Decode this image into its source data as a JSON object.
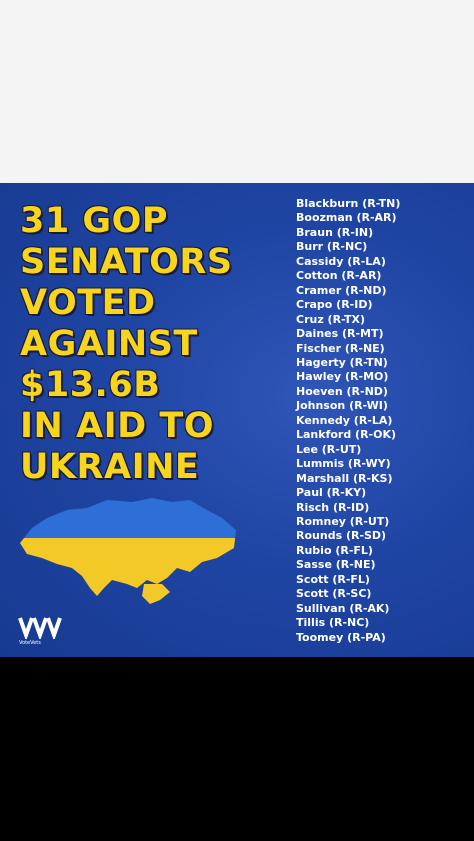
{
  "headline": [
    "31 GOP",
    "SENATORS",
    "VOTED",
    "AGAINST",
    "$13.6B",
    "IN AID TO",
    "UKRAINE"
  ],
  "senators": [
    "Blackburn (R-TN)",
    "Boozman (R-AR)",
    "Braun (R-IN)",
    "Burr (R-NC)",
    "Cassidy (R-LA)",
    "Cotton (R-AR)",
    "Cramer (R-ND)",
    "Crapo (R-ID)",
    "Cruz (R-TX)",
    "Daines (R-MT)",
    "Fischer (R-NE)",
    "Hagerty (R-TN)",
    "Hawley (R-MO)",
    "Hoeven (R-ND)",
    "Johnson (R-WI)",
    "Kennedy (R-LA)",
    "Lankford (R-OK)",
    "Lee (R-UT)",
    "Lummis (R-WY)",
    "Marshall (R-KS)",
    "Paul (R-KY)",
    "Risch (R-ID)",
    "Romney (R-UT)",
    "Rounds (R-SD)",
    "Rubio (R-FL)",
    "Sasse (R-NE)",
    "Scott (R-FL)",
    "Scott (R-SC)",
    "Sullivan (R-AK)",
    "Tillis (R-NC)",
    "Toomey (R-PA)"
  ],
  "logo": "VoteVets"
}
